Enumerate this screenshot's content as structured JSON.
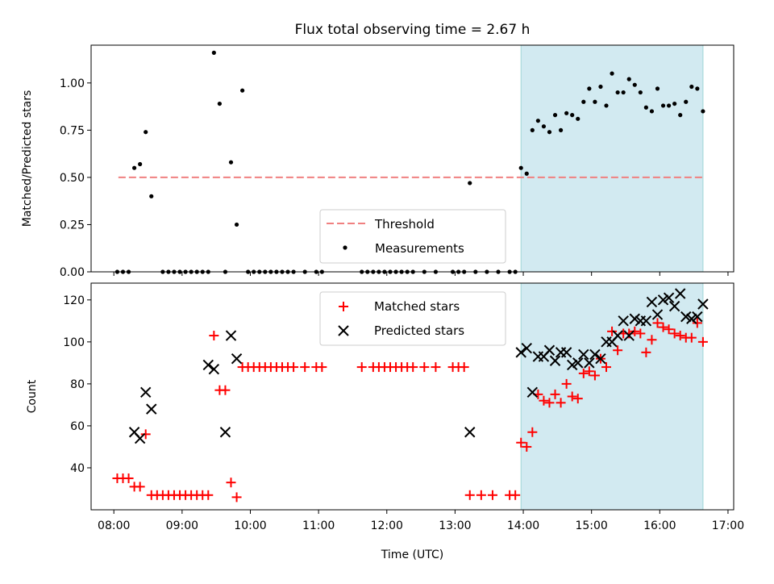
{
  "chart_data": [
    {
      "type": "scatter",
      "title": "Flux total observing time = 2.67 h",
      "xlabel": "",
      "ylabel": "Matched/Predicted stars",
      "xlim": [
        "07:40",
        "17:05"
      ],
      "ylim": [
        0,
        1.2
      ],
      "yticks": [
        "0.00",
        "0.25",
        "0.50",
        "0.75",
        "1.00"
      ],
      "highlight_span": {
        "x0": "13:58",
        "x1": "16:38",
        "color": "#add8e6"
      },
      "legend_loc": "lower-center",
      "threshold": {
        "name": "Threshold",
        "value": 0.5,
        "x_start": "08:04",
        "x_end": "16:38",
        "color": "#f08080",
        "style": "dashed"
      },
      "series": [
        {
          "name": "Measurements",
          "color": "#000000",
          "marker": "dot",
          "points": [
            [
              "08:03",
              0
            ],
            [
              "08:08",
              0
            ],
            [
              "08:13",
              0
            ],
            [
              "08:18",
              0.55
            ],
            [
              "08:23",
              0.57
            ],
            [
              "08:28",
              0.74
            ],
            [
              "08:33",
              0.4
            ],
            [
              "08:43",
              0
            ],
            [
              "08:48",
              0
            ],
            [
              "08:53",
              0
            ],
            [
              "08:58",
              0
            ],
            [
              "09:03",
              0
            ],
            [
              "09:08",
              0
            ],
            [
              "09:13",
              0
            ],
            [
              "09:18",
              0
            ],
            [
              "09:23",
              0
            ],
            [
              "09:28",
              1.16
            ],
            [
              "09:33",
              0.89
            ],
            [
              "09:38",
              0
            ],
            [
              "09:43",
              0.58
            ],
            [
              "09:48",
              0.25
            ],
            [
              "09:53",
              0.96
            ],
            [
              "09:58",
              0
            ],
            [
              "10:03",
              0
            ],
            [
              "10:08",
              0
            ],
            [
              "10:13",
              0
            ],
            [
              "10:18",
              0
            ],
            [
              "10:23",
              0
            ],
            [
              "10:28",
              0
            ],
            [
              "10:33",
              0
            ],
            [
              "10:38",
              0
            ],
            [
              "10:48",
              0
            ],
            [
              "10:58",
              0
            ],
            [
              "11:03",
              0
            ],
            [
              "11:38",
              0
            ],
            [
              "11:43",
              0
            ],
            [
              "11:48",
              0
            ],
            [
              "11:53",
              0
            ],
            [
              "11:58",
              0
            ],
            [
              "12:03",
              0
            ],
            [
              "12:08",
              0
            ],
            [
              "12:13",
              0
            ],
            [
              "12:18",
              0
            ],
            [
              "12:23",
              0
            ],
            [
              "12:33",
              0
            ],
            [
              "12:43",
              0
            ],
            [
              "12:58",
              0
            ],
            [
              "13:03",
              0
            ],
            [
              "13:08",
              0
            ],
            [
              "13:13",
              0.47
            ],
            [
              "13:18",
              0
            ],
            [
              "13:28",
              0
            ],
            [
              "13:38",
              0
            ],
            [
              "13:48",
              0
            ],
            [
              "13:53",
              0
            ],
            [
              "13:58",
              0.55
            ],
            [
              "14:03",
              0.52
            ],
            [
              "14:08",
              0.75
            ],
            [
              "14:13",
              0.8
            ],
            [
              "14:18",
              0.77
            ],
            [
              "14:23",
              0.74
            ],
            [
              "14:28",
              0.83
            ],
            [
              "14:33",
              0.75
            ],
            [
              "14:38",
              0.84
            ],
            [
              "14:43",
              0.83
            ],
            [
              "14:48",
              0.81
            ],
            [
              "14:53",
              0.9
            ],
            [
              "14:58",
              0.97
            ],
            [
              "15:03",
              0.9
            ],
            [
              "15:08",
              0.98
            ],
            [
              "15:13",
              0.88
            ],
            [
              "15:18",
              1.05
            ],
            [
              "15:23",
              0.95
            ],
            [
              "15:28",
              0.95
            ],
            [
              "15:33",
              1.02
            ],
            [
              "15:38",
              0.99
            ],
            [
              "15:43",
              0.95
            ],
            [
              "15:48",
              0.87
            ],
            [
              "15:53",
              0.85
            ],
            [
              "15:58",
              0.97
            ],
            [
              "16:03",
              0.88
            ],
            [
              "16:08",
              0.88
            ],
            [
              "16:13",
              0.89
            ],
            [
              "16:18",
              0.83
            ],
            [
              "16:23",
              0.9
            ],
            [
              "16:28",
              0.98
            ],
            [
              "16:33",
              0.97
            ],
            [
              "16:38",
              0.85
            ]
          ]
        }
      ]
    },
    {
      "type": "scatter",
      "title": "",
      "xlabel": "Time (UTC)",
      "ylabel": "Count",
      "xlim": [
        "07:40",
        "17:05"
      ],
      "ylim": [
        20,
        128
      ],
      "xticks": [
        "08:00",
        "09:00",
        "10:00",
        "11:00",
        "12:00",
        "13:00",
        "14:00",
        "15:00",
        "16:00",
        "17:00"
      ],
      "yticks": [
        "40",
        "60",
        "80",
        "100",
        "120"
      ],
      "highlight_span": {
        "x0": "13:58",
        "x1": "16:38",
        "color": "#add8e6"
      },
      "legend_loc": "upper-center",
      "series": [
        {
          "name": "Matched stars",
          "color": "#ff0000",
          "marker": "plus",
          "points": [
            [
              "08:03",
              35
            ],
            [
              "08:08",
              35
            ],
            [
              "08:13",
              35
            ],
            [
              "08:18",
              31
            ],
            [
              "08:23",
              31
            ],
            [
              "08:28",
              56
            ],
            [
              "08:33",
              27
            ],
            [
              "08:38",
              27
            ],
            [
              "08:43",
              27
            ],
            [
              "08:48",
              27
            ],
            [
              "08:53",
              27
            ],
            [
              "08:58",
              27
            ],
            [
              "09:03",
              27
            ],
            [
              "09:08",
              27
            ],
            [
              "09:13",
              27
            ],
            [
              "09:18",
              27
            ],
            [
              "09:23",
              27
            ],
            [
              "09:28",
              103
            ],
            [
              "09:33",
              77
            ],
            [
              "09:38",
              77
            ],
            [
              "09:43",
              33
            ],
            [
              "09:48",
              26
            ],
            [
              "09:53",
              88
            ],
            [
              "09:58",
              88
            ],
            [
              "10:03",
              88
            ],
            [
              "10:08",
              88
            ],
            [
              "10:13",
              88
            ],
            [
              "10:18",
              88
            ],
            [
              "10:23",
              88
            ],
            [
              "10:28",
              88
            ],
            [
              "10:33",
              88
            ],
            [
              "10:38",
              88
            ],
            [
              "10:48",
              88
            ],
            [
              "10:58",
              88
            ],
            [
              "11:03",
              88
            ],
            [
              "11:38",
              88
            ],
            [
              "11:48",
              88
            ],
            [
              "11:53",
              88
            ],
            [
              "11:58",
              88
            ],
            [
              "12:03",
              88
            ],
            [
              "12:08",
              88
            ],
            [
              "12:13",
              88
            ],
            [
              "12:18",
              88
            ],
            [
              "12:23",
              88
            ],
            [
              "12:33",
              88
            ],
            [
              "12:43",
              88
            ],
            [
              "12:58",
              88
            ],
            [
              "13:03",
              88
            ],
            [
              "13:08",
              88
            ],
            [
              "13:13",
              27
            ],
            [
              "13:23",
              27
            ],
            [
              "13:33",
              27
            ],
            [
              "13:48",
              27
            ],
            [
              "13:53",
              27
            ],
            [
              "13:58",
              52
            ],
            [
              "14:03",
              50
            ],
            [
              "14:08",
              57
            ],
            [
              "14:13",
              75
            ],
            [
              "14:18",
              72
            ],
            [
              "14:23",
              71
            ],
            [
              "14:28",
              75
            ],
            [
              "14:33",
              71
            ],
            [
              "14:38",
              80
            ],
            [
              "14:43",
              74
            ],
            [
              "14:48",
              73
            ],
            [
              "14:53",
              85
            ],
            [
              "14:58",
              86
            ],
            [
              "15:03",
              84
            ],
            [
              "15:08",
              92
            ],
            [
              "15:13",
              88
            ],
            [
              "15:18",
              105
            ],
            [
              "15:23",
              96
            ],
            [
              "15:28",
              104
            ],
            [
              "15:33",
              104
            ],
            [
              "15:38",
              105
            ],
            [
              "15:43",
              104
            ],
            [
              "15:48",
              95
            ],
            [
              "15:53",
              101
            ],
            [
              "15:58",
              109
            ],
            [
              "16:03",
              107
            ],
            [
              "16:08",
              106
            ],
            [
              "16:13",
              104
            ],
            [
              "16:18",
              103
            ],
            [
              "16:23",
              102
            ],
            [
              "16:28",
              102
            ],
            [
              "16:33",
              109
            ],
            [
              "16:38",
              100
            ]
          ]
        },
        {
          "name": "Predicted stars",
          "color": "#000000",
          "marker": "x",
          "points": [
            [
              "08:18",
              57
            ],
            [
              "08:23",
              54
            ],
            [
              "08:28",
              76
            ],
            [
              "08:33",
              68
            ],
            [
              "09:23",
              89
            ],
            [
              "09:28",
              87
            ],
            [
              "09:38",
              57
            ],
            [
              "09:43",
              103
            ],
            [
              "09:48",
              92
            ],
            [
              "13:13",
              57
            ],
            [
              "13:58",
              95
            ],
            [
              "14:03",
              97
            ],
            [
              "14:08",
              76
            ],
            [
              "14:13",
              93
            ],
            [
              "14:18",
              93
            ],
            [
              "14:23",
              96
            ],
            [
              "14:28",
              91
            ],
            [
              "14:33",
              95
            ],
            [
              "14:38",
              95
            ],
            [
              "14:43",
              89
            ],
            [
              "14:48",
              90
            ],
            [
              "14:53",
              94
            ],
            [
              "14:58",
              90
            ],
            [
              "15:03",
              94
            ],
            [
              "15:08",
              92
            ],
            [
              "15:13",
              100
            ],
            [
              "15:18",
              100
            ],
            [
              "15:23",
              103
            ],
            [
              "15:28",
              110
            ],
            [
              "15:33",
              103
            ],
            [
              "15:38",
              111
            ],
            [
              "15:43",
              110
            ],
            [
              "15:48",
              110
            ],
            [
              "15:53",
              119
            ],
            [
              "15:58",
              113
            ],
            [
              "16:03",
              120
            ],
            [
              "16:08",
              121
            ],
            [
              "16:13",
              117
            ],
            [
              "16:18",
              123
            ],
            [
              "16:23",
              112
            ],
            [
              "16:28",
              111
            ],
            [
              "16:33",
              112
            ],
            [
              "16:38",
              118
            ]
          ]
        }
      ]
    }
  ]
}
